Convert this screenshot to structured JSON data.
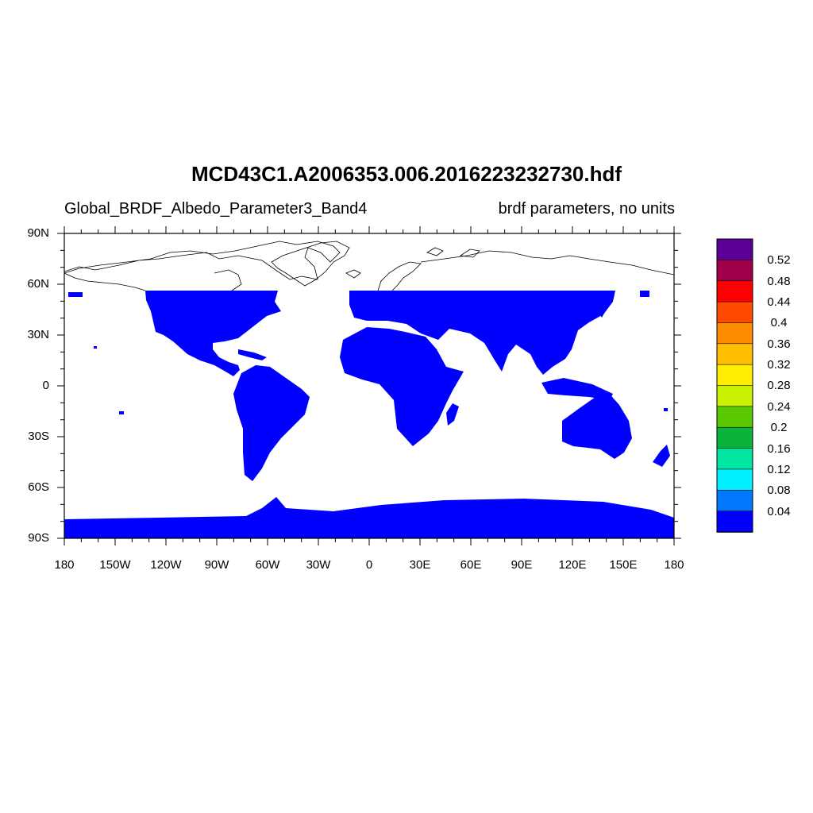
{
  "title": "MCD43C1.A2006353.006.2016223232730.hdf",
  "subtitle_left": "Global_BRDF_Albedo_Parameter3_Band4",
  "subtitle_right": "brdf parameters, no units",
  "y_ticks": [
    "90N",
    "60N",
    "30N",
    "0",
    "30S",
    "60S",
    "90S"
  ],
  "x_ticks": [
    "180",
    "150W",
    "120W",
    "90W",
    "60W",
    "30W",
    "0",
    "30E",
    "60E",
    "90E",
    "120E",
    "150E",
    "180"
  ],
  "colorbar": {
    "labels": [
      "0.52",
      "0.48",
      "0.44",
      "0.4",
      "0.36",
      "0.32",
      "0.28",
      "0.24",
      "0.2",
      "0.16",
      "0.12",
      "0.08",
      "0.04"
    ],
    "colors": [
      "#5a0096",
      "#a0004a",
      "#ff0000",
      "#ff4a00",
      "#ff8c00",
      "#ffbe00",
      "#ffee00",
      "#c8f000",
      "#5ac800",
      "#0ab43c",
      "#00e6a0",
      "#00f0ff",
      "#0078ff",
      "#0000ff"
    ]
  },
  "land_color": "#0000ff",
  "coast_color": "#000000"
}
